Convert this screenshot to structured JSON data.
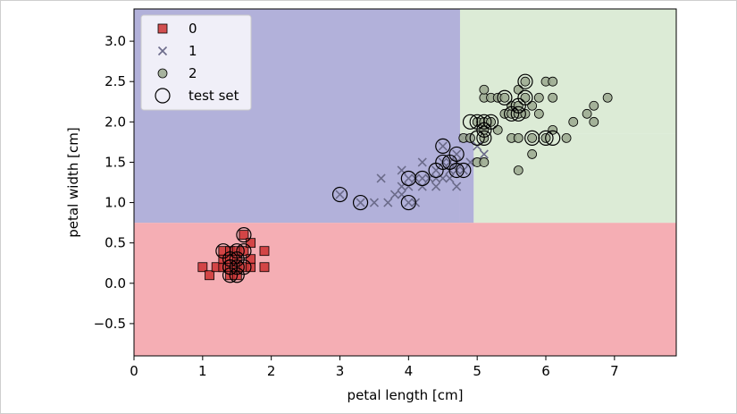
{
  "chart_data": {
    "type": "scatter",
    "xlabel": "petal length [cm]",
    "ylabel": "petal width [cm]",
    "xlim": [
      0,
      7.9
    ],
    "ylim": [
      -0.9,
      3.4
    ],
    "xticks": [
      "0",
      "1",
      "2",
      "3",
      "4",
      "5",
      "6",
      "7"
    ],
    "yticks": [
      "−0.5",
      "0.0",
      "0.5",
      "1.0",
      "1.5",
      "2.0",
      "2.5",
      "3.0"
    ],
    "ytick_values": [
      -0.5,
      0.0,
      0.5,
      1.0,
      1.5,
      2.0,
      2.5,
      3.0
    ],
    "grid": false,
    "legend_position": "top-left",
    "decision_regions": [
      {
        "class": "0",
        "color": "#f5aeb4",
        "x": [
          0,
          7.9
        ],
        "y": [
          -0.9,
          0.75
        ]
      },
      {
        "class": "1",
        "color": "#b2b1da",
        "x": [
          0,
          4.75
        ],
        "y": [
          0.75,
          3.4
        ]
      },
      {
        "class": "1",
        "color": "#b2b1da",
        "x": [
          4.75,
          4.95
        ],
        "y": [
          0.75,
          1.85
        ]
      },
      {
        "class": "2",
        "color": "#dcebd6",
        "x": [
          4.75,
          7.9
        ],
        "y": [
          1.85,
          3.4
        ]
      },
      {
        "class": "2",
        "color": "#dcebd6",
        "x": [
          4.95,
          7.9
        ],
        "y": [
          0.75,
          1.85
        ]
      }
    ],
    "series": [
      {
        "name": "0",
        "marker": "square",
        "color": "#cc3333",
        "points": [
          [
            1.0,
            0.2
          ],
          [
            1.1,
            0.1
          ],
          [
            1.2,
            0.2
          ],
          [
            1.3,
            0.2
          ],
          [
            1.3,
            0.3
          ],
          [
            1.3,
            0.4
          ],
          [
            1.4,
            0.1
          ],
          [
            1.4,
            0.2
          ],
          [
            1.4,
            0.3
          ],
          [
            1.4,
            0.4
          ],
          [
            1.5,
            0.1
          ],
          [
            1.5,
            0.2
          ],
          [
            1.5,
            0.3
          ],
          [
            1.5,
            0.4
          ],
          [
            1.6,
            0.2
          ],
          [
            1.6,
            0.4
          ],
          [
            1.6,
            0.6
          ],
          [
            1.7,
            0.2
          ],
          [
            1.7,
            0.3
          ],
          [
            1.7,
            0.5
          ],
          [
            1.9,
            0.2
          ],
          [
            1.9,
            0.4
          ]
        ]
      },
      {
        "name": "1",
        "marker": "x",
        "color": "#6b6b8a",
        "points": [
          [
            3.0,
            1.1
          ],
          [
            3.3,
            1.0
          ],
          [
            3.5,
            1.0
          ],
          [
            3.6,
            1.3
          ],
          [
            3.7,
            1.0
          ],
          [
            3.8,
            1.1
          ],
          [
            3.9,
            1.1
          ],
          [
            3.9,
            1.2
          ],
          [
            3.9,
            1.4
          ],
          [
            4.0,
            1.0
          ],
          [
            4.0,
            1.2
          ],
          [
            4.0,
            1.3
          ],
          [
            4.1,
            1.0
          ],
          [
            4.1,
            1.3
          ],
          [
            4.2,
            1.2
          ],
          [
            4.2,
            1.3
          ],
          [
            4.2,
            1.5
          ],
          [
            4.3,
            1.3
          ],
          [
            4.4,
            1.2
          ],
          [
            4.4,
            1.3
          ],
          [
            4.4,
            1.4
          ],
          [
            4.5,
            1.3
          ],
          [
            4.5,
            1.5
          ],
          [
            4.5,
            1.7
          ],
          [
            4.6,
            1.3
          ],
          [
            4.6,
            1.4
          ],
          [
            4.6,
            1.5
          ],
          [
            4.7,
            1.2
          ],
          [
            4.7,
            1.4
          ],
          [
            4.7,
            1.5
          ],
          [
            4.7,
            1.6
          ],
          [
            4.8,
            1.4
          ],
          [
            4.8,
            1.8
          ],
          [
            4.9,
            1.5
          ],
          [
            5.0,
            1.7
          ],
          [
            5.1,
            1.6
          ]
        ]
      },
      {
        "name": "2",
        "marker": "circle",
        "color": "#9aa88e",
        "points": [
          [
            4.8,
            1.8
          ],
          [
            4.9,
            1.8
          ],
          [
            5.0,
            1.5
          ],
          [
            5.0,
            2.0
          ],
          [
            5.1,
            1.5
          ],
          [
            5.1,
            1.8
          ],
          [
            5.1,
            1.9
          ],
          [
            5.1,
            2.0
          ],
          [
            5.1,
            2.3
          ],
          [
            5.1,
            2.4
          ],
          [
            5.2,
            2.0
          ],
          [
            5.2,
            2.3
          ],
          [
            5.3,
            1.9
          ],
          [
            5.3,
            2.3
          ],
          [
            5.4,
            2.1
          ],
          [
            5.4,
            2.3
          ],
          [
            5.5,
            1.8
          ],
          [
            5.5,
            2.1
          ],
          [
            5.5,
            2.2
          ],
          [
            5.6,
            1.4
          ],
          [
            5.6,
            1.8
          ],
          [
            5.6,
            2.1
          ],
          [
            5.6,
            2.2
          ],
          [
            5.6,
            2.4
          ],
          [
            5.7,
            2.1
          ],
          [
            5.7,
            2.3
          ],
          [
            5.7,
            2.5
          ],
          [
            5.8,
            1.6
          ],
          [
            5.8,
            1.8
          ],
          [
            5.8,
            2.2
          ],
          [
            5.9,
            2.1
          ],
          [
            5.9,
            2.3
          ],
          [
            6.0,
            1.8
          ],
          [
            6.0,
            2.5
          ],
          [
            6.1,
            1.9
          ],
          [
            6.1,
            2.3
          ],
          [
            6.1,
            2.5
          ],
          [
            6.3,
            1.8
          ],
          [
            6.4,
            2.0
          ],
          [
            6.6,
            2.1
          ],
          [
            6.7,
            2.0
          ],
          [
            6.7,
            2.2
          ],
          [
            6.9,
            2.3
          ]
        ]
      }
    ],
    "test_set": {
      "name": "test set",
      "marker": "open-circle",
      "points": [
        [
          1.3,
          0.4
        ],
        [
          1.4,
          0.2
        ],
        [
          1.4,
          0.3
        ],
        [
          1.5,
          0.2
        ],
        [
          1.5,
          0.1
        ],
        [
          1.6,
          0.6
        ],
        [
          1.5,
          0.4
        ],
        [
          1.4,
          0.1
        ],
        [
          1.5,
          0.3
        ],
        [
          1.6,
          0.4
        ],
        [
          1.6,
          0.2
        ],
        [
          1.4,
          0.2
        ],
        [
          3.0,
          1.1
        ],
        [
          3.3,
          1.0
        ],
        [
          4.0,
          1.0
        ],
        [
          4.0,
          1.3
        ],
        [
          4.2,
          1.3
        ],
        [
          4.4,
          1.4
        ],
        [
          4.5,
          1.5
        ],
        [
          4.6,
          1.5
        ],
        [
          4.5,
          1.7
        ],
        [
          4.7,
          1.4
        ],
        [
          4.7,
          1.6
        ],
        [
          4.8,
          1.4
        ],
        [
          4.9,
          2.0
        ],
        [
          5.0,
          2.0
        ],
        [
          5.1,
          2.0
        ],
        [
          5.1,
          1.9
        ],
        [
          5.0,
          1.8
        ],
        [
          5.1,
          1.8
        ],
        [
          5.2,
          2.0
        ],
        [
          5.4,
          2.3
        ],
        [
          5.5,
          2.1
        ],
        [
          5.6,
          2.1
        ],
        [
          5.6,
          2.2
        ],
        [
          5.7,
          2.5
        ],
        [
          5.8,
          1.8
        ],
        [
          5.7,
          2.3
        ],
        [
          6.0,
          1.8
        ],
        [
          6.1,
          1.8
        ]
      ]
    }
  }
}
